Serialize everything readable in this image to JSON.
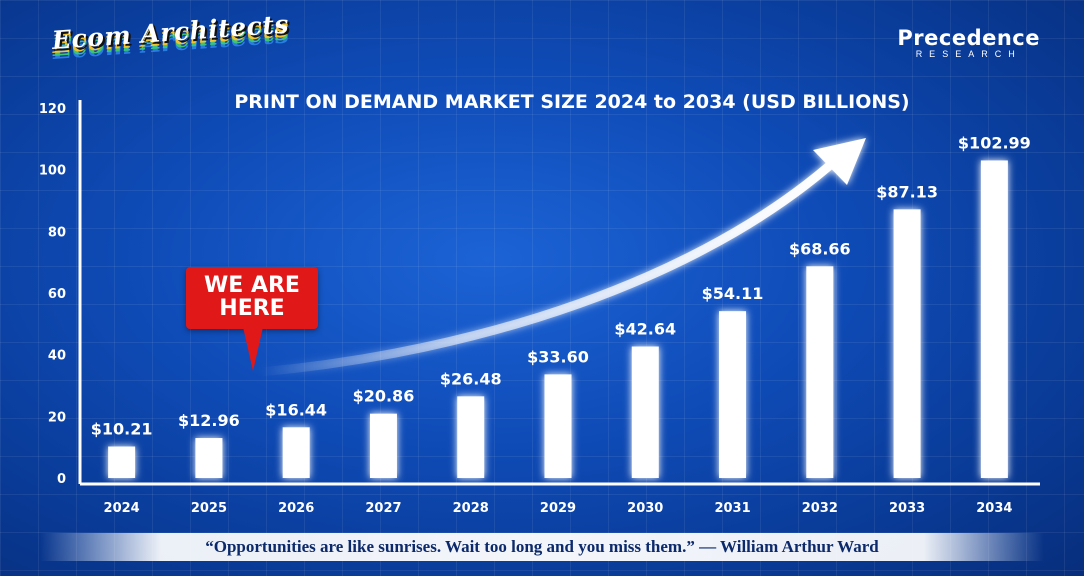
{
  "header": {
    "brand": "Ecom Architects",
    "logo_main": "Precedence",
    "logo_sub": "RESEARCH"
  },
  "callout": {
    "line1": "WE ARE",
    "line2": "HERE"
  },
  "quote": "“Opportunities are like sunrises. Wait too long and you miss them.” — William Arthur Ward",
  "colors": {
    "background": "#0f4cb8",
    "bar": "#ffffff",
    "callout": "#e01818"
  },
  "chart_data": {
    "type": "bar",
    "title": "PRINT ON DEMAND MARKET SIZE 2024 to 2034 (USD BILLIONS)",
    "xlabel": "",
    "ylabel": "",
    "categories": [
      "2024",
      "2025",
      "2026",
      "2027",
      "2028",
      "2029",
      "2030",
      "2031",
      "2032",
      "2033",
      "2034"
    ],
    "values": [
      10.21,
      12.96,
      16.44,
      20.86,
      26.48,
      33.6,
      42.64,
      54.11,
      68.66,
      87.13,
      102.99
    ],
    "data_labels": [
      "$10.21",
      "$12.96",
      "$16.44",
      "$20.86",
      "$26.48",
      "$33.60",
      "$42.64",
      "$54.11",
      "$68.66",
      "$87.13",
      "$102.99"
    ],
    "ylim": [
      0,
      120
    ],
    "yticks": [
      0,
      20,
      40,
      60,
      80,
      100,
      120
    ],
    "grid": false,
    "legend": "none"
  }
}
